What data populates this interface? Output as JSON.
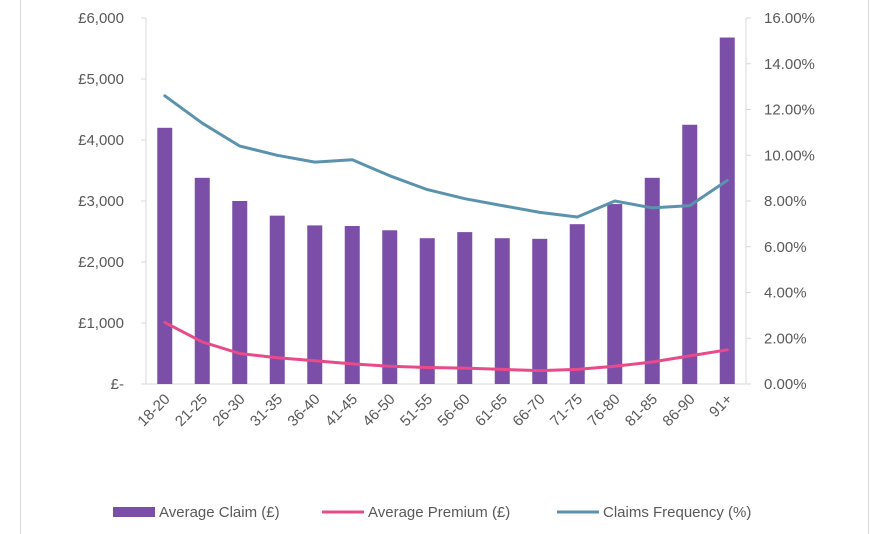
{
  "chart_data": {
    "type": "bar",
    "title": "",
    "xlabel": "",
    "ylabel": "",
    "categories": [
      "18-20",
      "21-25",
      "26-30",
      "31-35",
      "36-40",
      "41-45",
      "46-50",
      "51-55",
      "56-60",
      "61-65",
      "66-70",
      "71-75",
      "76-80",
      "81-85",
      "86-90",
      "91+"
    ],
    "ylim": [
      0,
      6000
    ],
    "y2lim": [
      0,
      16
    ],
    "y_ticks": [
      "£-",
      "£1,000",
      "£2,000",
      "£3,000",
      "£4,000",
      "£5,000",
      "£6,000"
    ],
    "y2_ticks": [
      "0.00%",
      "2.00%",
      "4.00%",
      "6.00%",
      "8.00%",
      "10.00%",
      "12.00%",
      "14.00%",
      "16.00%"
    ],
    "grid": false,
    "legend_position": "bottom",
    "series": [
      {
        "name": "Average Claim (£)",
        "type": "bar",
        "axis": "left",
        "color": "#7b4ea8",
        "values": [
          4200,
          3380,
          3000,
          2760,
          2600,
          2590,
          2520,
          2390,
          2490,
          2390,
          2380,
          2620,
          2950,
          3380,
          4250,
          5680
        ]
      },
      {
        "name": "Average Premium (£)",
        "type": "line",
        "axis": "left",
        "color": "#e84a8a",
        "values": [
          1010,
          690,
          500,
          430,
          380,
          330,
          290,
          270,
          260,
          240,
          220,
          240,
          290,
          360,
          460,
          560
        ]
      },
      {
        "name": "Claims Frequency (%)",
        "type": "line",
        "axis": "right",
        "color": "#5b93ae",
        "values": [
          12.6,
          11.4,
          10.4,
          10.0,
          9.7,
          9.8,
          9.1,
          8.5,
          8.1,
          7.8,
          7.5,
          7.3,
          8.0,
          7.7,
          7.8,
          8.9
        ]
      }
    ]
  }
}
